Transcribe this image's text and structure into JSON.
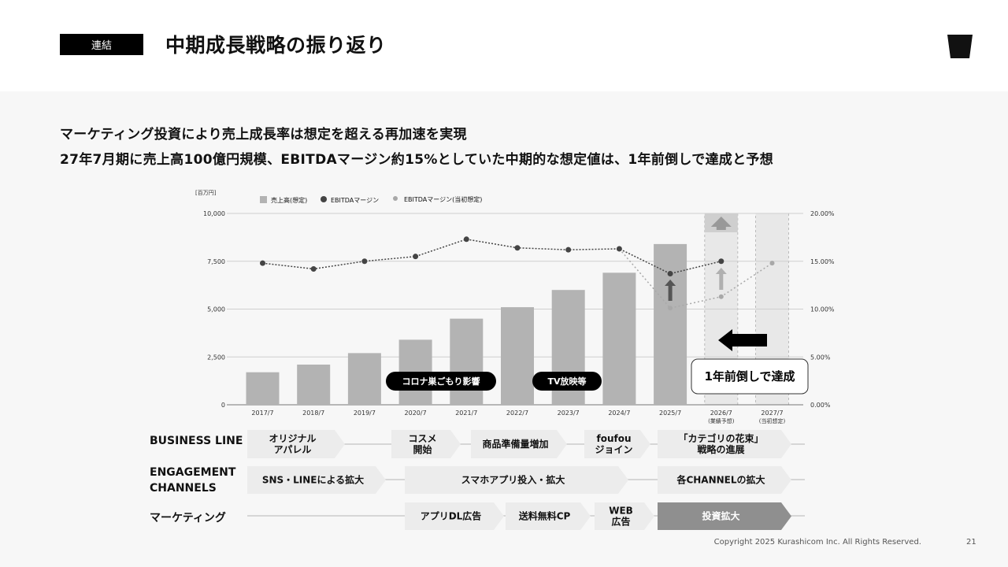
{
  "header": {
    "badge": "連結",
    "title": "中期成長戦略の振り返り"
  },
  "subtitle": {
    "line1": "マーケティング投資により売上成長率は想定を超える再加速を実現",
    "line2": "27年7月期に売上高100億円規模、EBITDAマージン約15%としていた中期的な想定値は、1年前倒しで達成と予想"
  },
  "chart_data": {
    "type": "bar",
    "unit_label": "[百万円]",
    "legend": [
      "売上高(想定)",
      "EBITDAマージン",
      "EBITDAマージン(当初想定)"
    ],
    "categories": [
      "2017/7",
      "2018/7",
      "2019/7",
      "2020/7",
      "2021/7",
      "2022/7",
      "2023/7",
      "2024/7",
      "2025/7",
      "2026/7",
      "2027/7"
    ],
    "category_notes": [
      "",
      "",
      "",
      "",
      "",
      "",
      "",
      "",
      "",
      "(業績予想)",
      "(当初想定)"
    ],
    "left_ticks": [
      "0",
      "2,500",
      "5,000",
      "7,500",
      "10,000"
    ],
    "right_ticks": [
      "0.00%",
      "5.00%",
      "10.00%",
      "15.00%",
      "20.00%"
    ],
    "ylim": [
      0,
      10000
    ],
    "y2lim": [
      0,
      20
    ],
    "series": [
      {
        "name": "売上高(想定)",
        "type": "bar",
        "values": [
          1700,
          2100,
          2700,
          3400,
          4500,
          5100,
          6000,
          6900,
          8400,
          null,
          null
        ]
      },
      {
        "name": "EBITDAマージン",
        "type": "line",
        "values": [
          14.8,
          14.2,
          15.0,
          15.5,
          17.3,
          16.4,
          16.2,
          16.3,
          13.7,
          15.0,
          null
        ]
      },
      {
        "name": "EBITDAマージン(当初想定)",
        "type": "line",
        "values": [
          null,
          null,
          null,
          null,
          null,
          null,
          null,
          16.3,
          10.1,
          11.3,
          14.8
        ]
      }
    ],
    "annotations": [
      "コロナ巣ごもり影響",
      "TV放映等",
      "1年前倒しで達成"
    ],
    "colors": {
      "bar": "#b3b3b3",
      "line": "#444444",
      "plan_line": "#a8a8a8",
      "shade": "#e8e8e8"
    }
  },
  "rows": [
    {
      "label": "BUSINESS LINE",
      "chevrons": [
        "オリジナル\nアパレル",
        "コスメ\n開始",
        "商品準備量増加",
        "foufou\nジョイン",
        "「カテゴリの花束」\n戦略の進展"
      ]
    },
    {
      "label": "ENGAGEMENT\nCHANNELS",
      "chevrons": [
        "SNS・LINEによる拡大",
        "スマホアプリ投入・拡大",
        "各CHANNELの拡大"
      ]
    },
    {
      "label": "マーケティング",
      "chevrons": [
        "アプリDL広告",
        "送料無料CP",
        "WEB\n広告",
        "投資拡大"
      ]
    }
  ],
  "footer": {
    "copyright": "Copyright 2025 Kurashicom Inc. All Rights Reserved.",
    "page": "21"
  }
}
